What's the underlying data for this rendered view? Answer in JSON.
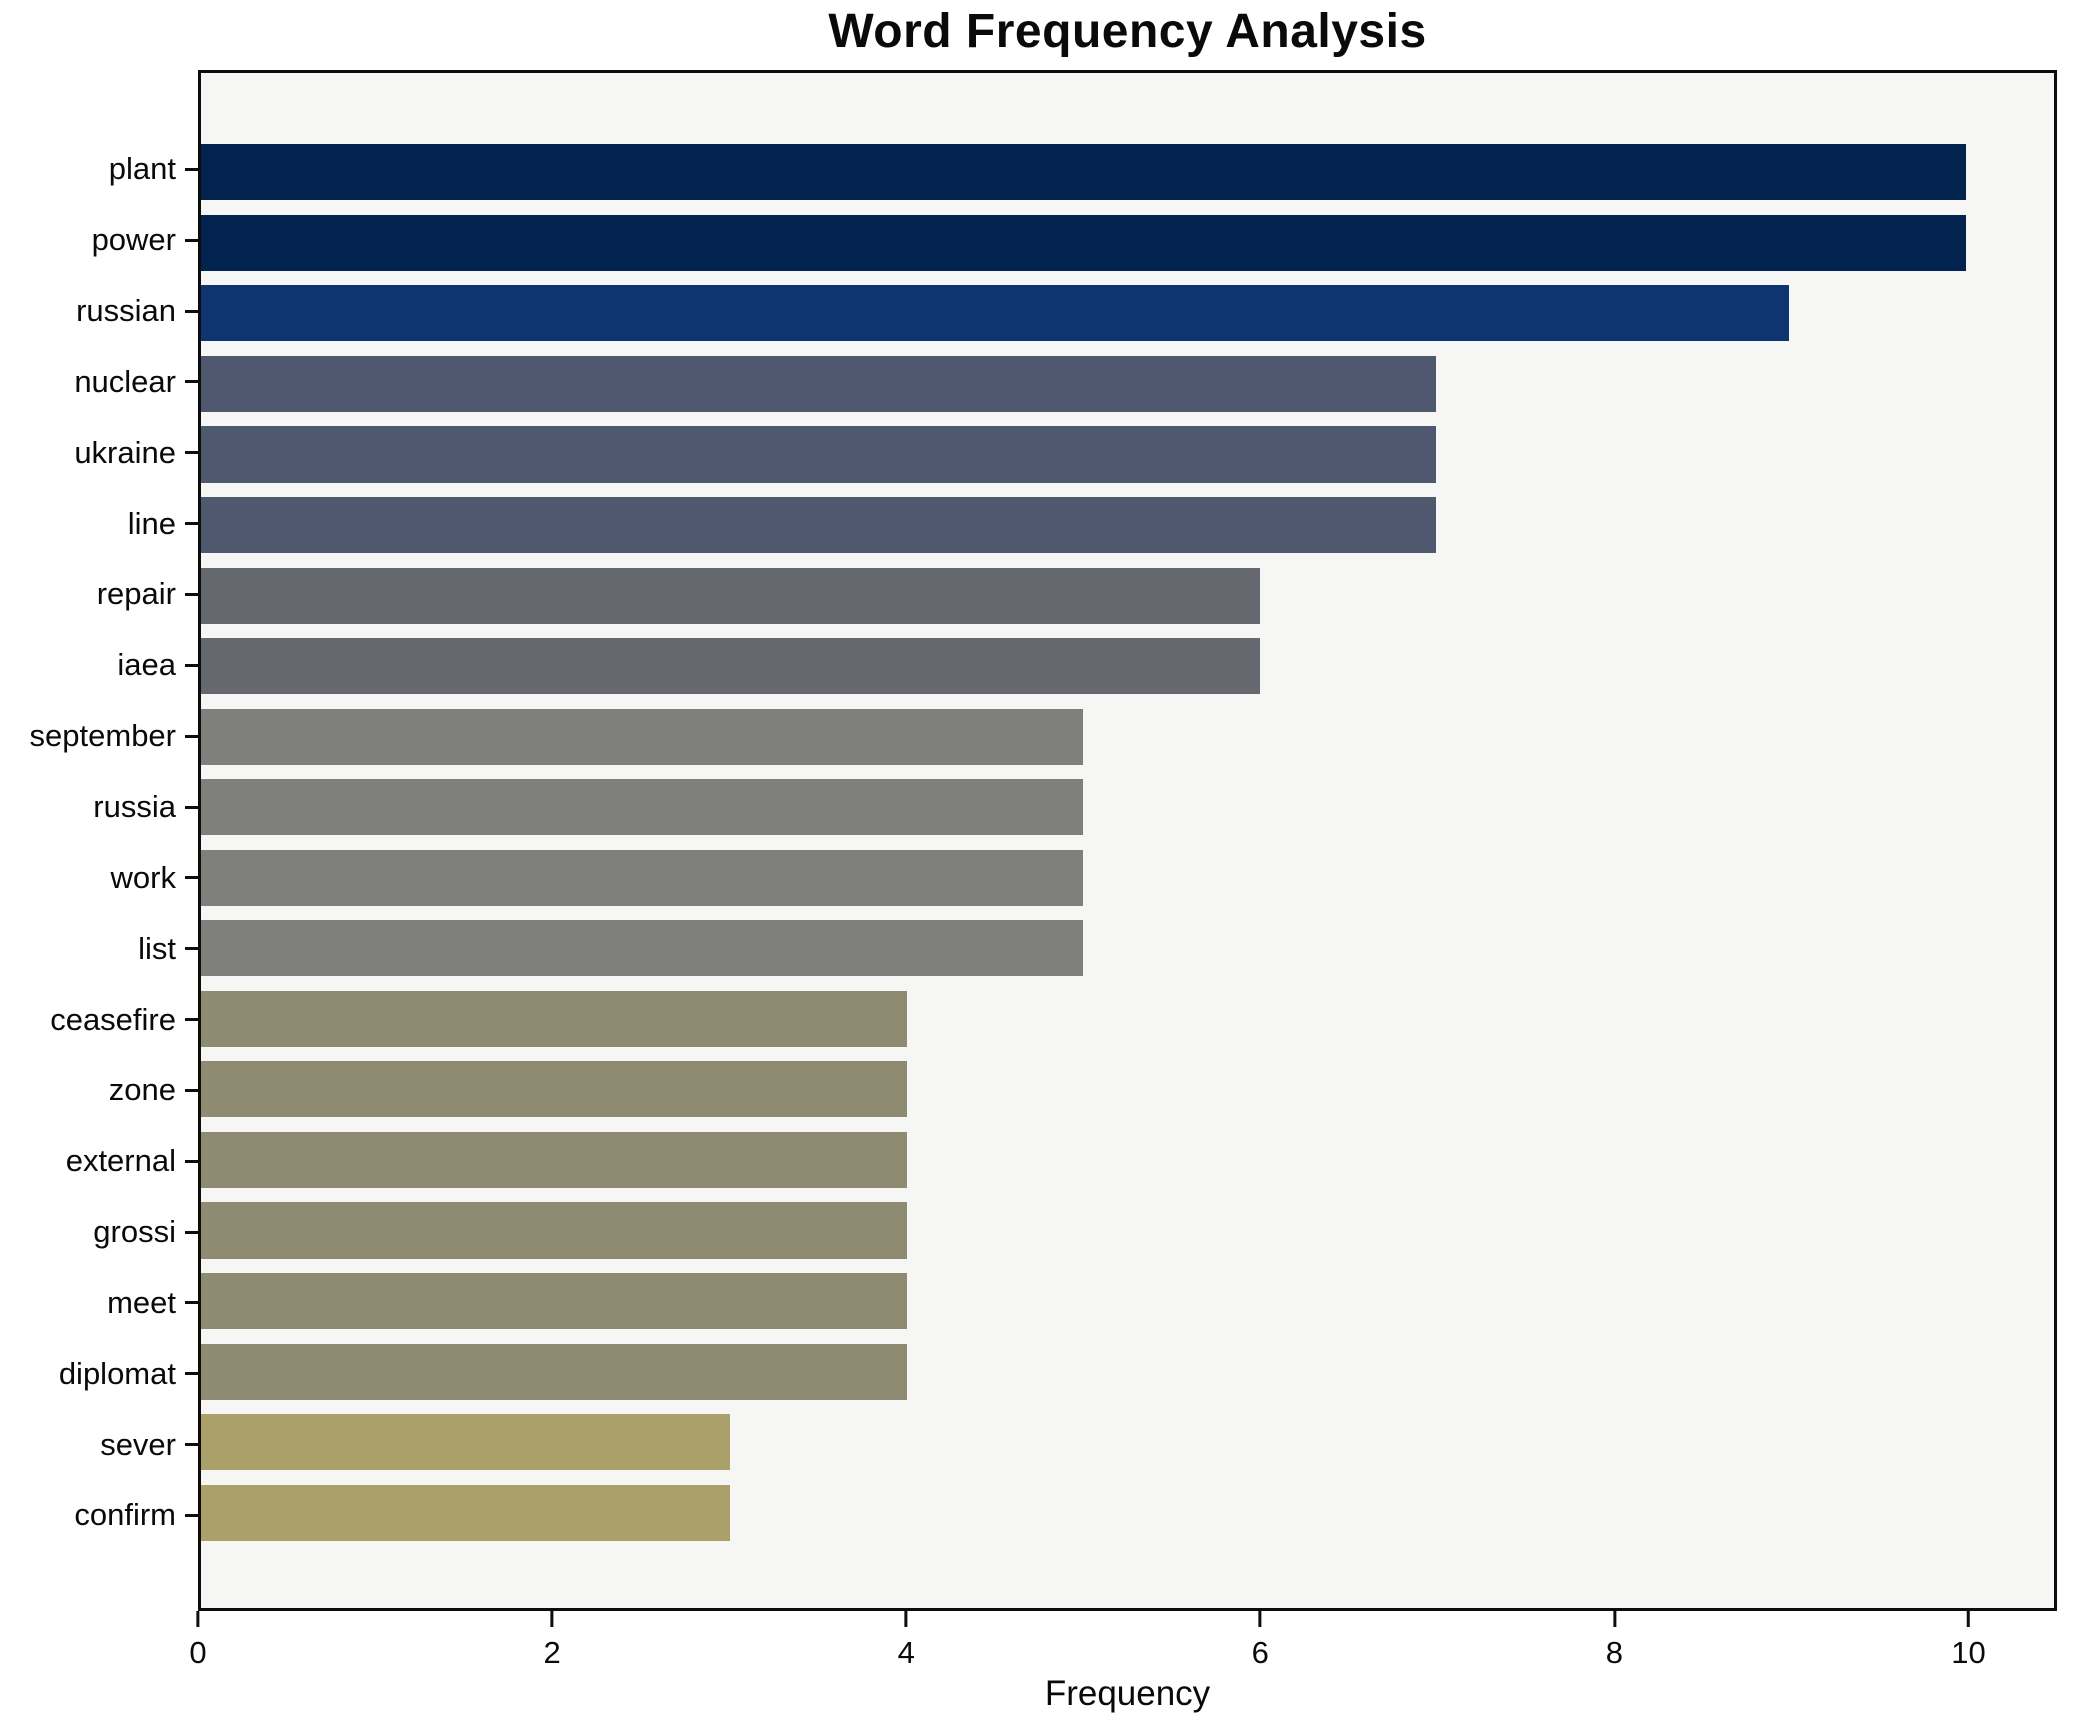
{
  "title": "Word Frequency Analysis",
  "chart_data": {
    "type": "bar",
    "orientation": "horizontal",
    "title": "Word Frequency Analysis",
    "xlabel": "Frequency",
    "ylabel": "",
    "categories": [
      "plant",
      "power",
      "russian",
      "nuclear",
      "ukraine",
      "line",
      "repair",
      "iaea",
      "september",
      "russia",
      "work",
      "list",
      "ceasefire",
      "zone",
      "external",
      "grossi",
      "meet",
      "diplomat",
      "sever",
      "confirm"
    ],
    "values": [
      10,
      10,
      9,
      7,
      7,
      7,
      6,
      6,
      5,
      5,
      5,
      5,
      4,
      4,
      4,
      4,
      4,
      4,
      3,
      3
    ],
    "bar_colors": [
      "#02234e",
      "#02234e",
      "#0e356f",
      "#4e586e",
      "#4e586e",
      "#4e586e",
      "#65696f",
      "#65696f",
      "#7f7f7b",
      "#7f7f7b",
      "#7f7f7b",
      "#7f7f7b",
      "#8f8a72",
      "#8f8a72",
      "#8f8a72",
      "#8f8a72",
      "#8f8a72",
      "#8f8a72",
      "#ab9f6a",
      "#ab9f6a"
    ],
    "xlim": [
      0,
      10.5
    ],
    "xticks": [
      0,
      2,
      4,
      6,
      8,
      10
    ],
    "grid": false,
    "legend_position": "none",
    "plot_background": "#f6f6f5",
    "figure_background": "#ffffff",
    "spine_color": "#0d0d0d",
    "text_color": "#0a0a0a"
  }
}
